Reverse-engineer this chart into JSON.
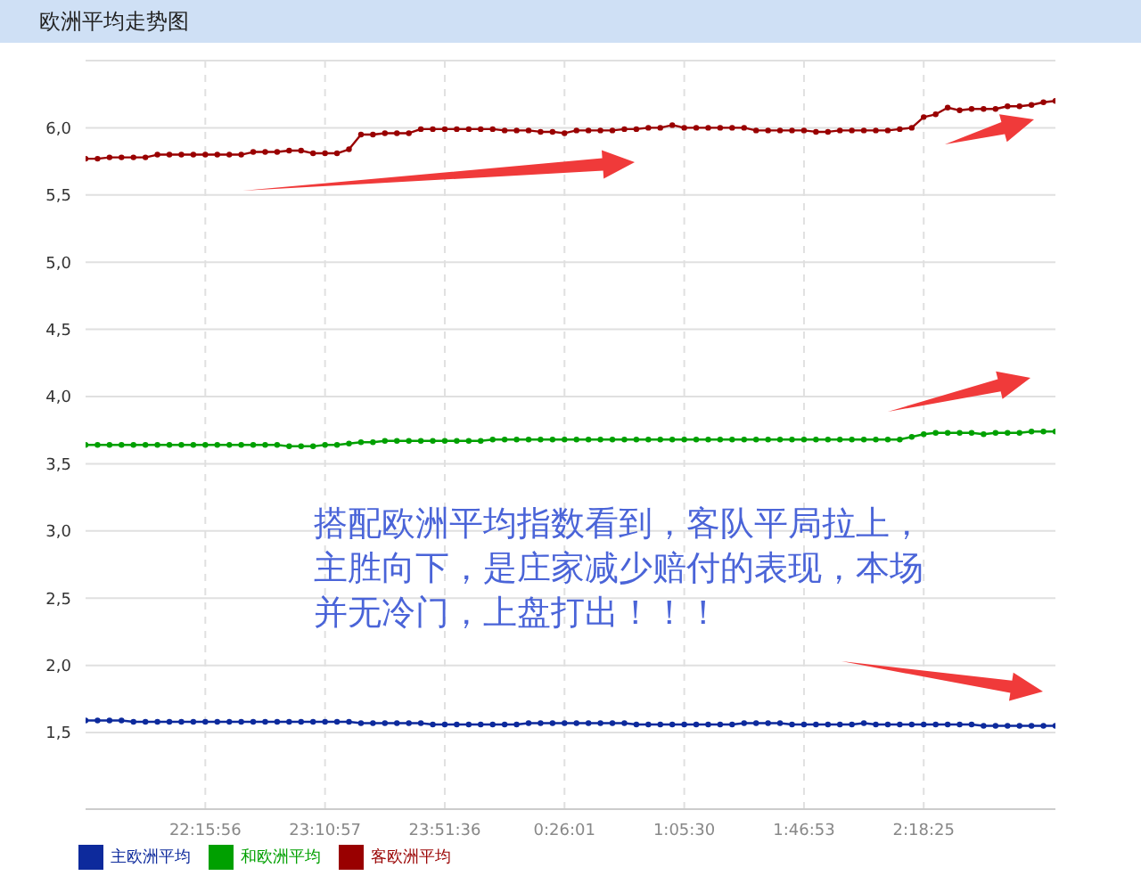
{
  "chart_data": {
    "type": "line",
    "title": "欧洲平均走势图",
    "categories": [
      null,
      null,
      null,
      null,
      null,
      null,
      null,
      null,
      null,
      null,
      "22:15:56",
      null,
      null,
      null,
      null,
      null,
      null,
      null,
      null,
      null,
      "23:10:57",
      null,
      null,
      null,
      null,
      null,
      null,
      null,
      null,
      null,
      "23:51:36",
      null,
      null,
      null,
      null,
      null,
      null,
      null,
      null,
      null,
      "0:26:01",
      null,
      null,
      null,
      null,
      null,
      null,
      null,
      null,
      null,
      "1:05:30",
      null,
      null,
      null,
      null,
      null,
      null,
      null,
      null,
      null,
      "1:46:53",
      null,
      null,
      null,
      null,
      null,
      null,
      null,
      null,
      null,
      "2:18:25",
      null,
      null,
      null,
      null,
      null,
      null,
      null,
      null,
      null,
      null,
      null
    ],
    "series": [
      {
        "name": "主欧洲平均",
        "color": "#0d2a9c",
        "values": [
          1.59,
          1.59,
          1.59,
          1.59,
          1.58,
          1.58,
          1.58,
          1.58,
          1.58,
          1.58,
          1.58,
          1.58,
          1.58,
          1.58,
          1.58,
          1.58,
          1.58,
          1.58,
          1.58,
          1.58,
          1.58,
          1.58,
          1.58,
          1.57,
          1.57,
          1.57,
          1.57,
          1.57,
          1.57,
          1.56,
          1.56,
          1.56,
          1.56,
          1.56,
          1.56,
          1.56,
          1.56,
          1.57,
          1.57,
          1.57,
          1.57,
          1.57,
          1.57,
          1.57,
          1.57,
          1.57,
          1.56,
          1.56,
          1.56,
          1.56,
          1.56,
          1.56,
          1.56,
          1.56,
          1.56,
          1.57,
          1.57,
          1.57,
          1.57,
          1.56,
          1.56,
          1.56,
          1.56,
          1.56,
          1.56,
          1.57,
          1.56,
          1.56,
          1.56,
          1.56,
          1.56,
          1.56,
          1.56,
          1.56,
          1.56,
          1.55,
          1.55,
          1.55,
          1.55,
          1.55,
          1.55,
          1.55
        ]
      },
      {
        "name": "和欧洲平均",
        "color": "#00a000",
        "values": [
          3.64,
          3.64,
          3.64,
          3.64,
          3.64,
          3.64,
          3.64,
          3.64,
          3.64,
          3.64,
          3.64,
          3.64,
          3.64,
          3.64,
          3.64,
          3.64,
          3.64,
          3.63,
          3.63,
          3.63,
          3.64,
          3.64,
          3.65,
          3.66,
          3.66,
          3.67,
          3.67,
          3.67,
          3.67,
          3.67,
          3.67,
          3.67,
          3.67,
          3.67,
          3.68,
          3.68,
          3.68,
          3.68,
          3.68,
          3.68,
          3.68,
          3.68,
          3.68,
          3.68,
          3.68,
          3.68,
          3.68,
          3.68,
          3.68,
          3.68,
          3.68,
          3.68,
          3.68,
          3.68,
          3.68,
          3.68,
          3.68,
          3.68,
          3.68,
          3.68,
          3.68,
          3.68,
          3.68,
          3.68,
          3.68,
          3.68,
          3.68,
          3.68,
          3.68,
          3.7,
          3.72,
          3.73,
          3.73,
          3.73,
          3.73,
          3.72,
          3.73,
          3.73,
          3.73,
          3.74,
          3.74,
          3.74
        ]
      },
      {
        "name": "客欧洲平均",
        "color": "#990000",
        "values": [
          5.77,
          5.77,
          5.78,
          5.78,
          5.78,
          5.78,
          5.8,
          5.8,
          5.8,
          5.8,
          5.8,
          5.8,
          5.8,
          5.8,
          5.82,
          5.82,
          5.82,
          5.83,
          5.83,
          5.81,
          5.81,
          5.81,
          5.84,
          5.95,
          5.95,
          5.96,
          5.96,
          5.96,
          5.99,
          5.99,
          5.99,
          5.99,
          5.99,
          5.99,
          5.99,
          5.98,
          5.98,
          5.98,
          5.97,
          5.97,
          5.96,
          5.98,
          5.98,
          5.98,
          5.98,
          5.99,
          5.99,
          6.0,
          6.0,
          6.02,
          6.0,
          6.0,
          6.0,
          6.0,
          6.0,
          6.0,
          5.98,
          5.98,
          5.98,
          5.98,
          5.98,
          5.97,
          5.97,
          5.98,
          5.98,
          5.98,
          5.98,
          5.98,
          5.99,
          6.0,
          6.08,
          6.1,
          6.15,
          6.13,
          6.14,
          6.14,
          6.14,
          6.16,
          6.16,
          6.17,
          6.19,
          6.2
        ]
      }
    ],
    "ylim": [
      0.93,
      6.5
    ],
    "yticks": [
      {
        "value": 1.5,
        "label": "1,5"
      },
      {
        "value": 2,
        "label": "2,0"
      },
      {
        "value": 2.5,
        "label": "2,5"
      },
      {
        "value": 3,
        "label": "3,0"
      },
      {
        "value": 3.5,
        "label": "3,5"
      },
      {
        "value": 4,
        "label": "4,0"
      },
      {
        "value": 4.5,
        "label": "4,5"
      },
      {
        "value": 5,
        "label": "5,0"
      },
      {
        "value": 5.5,
        "label": "5,5"
      },
      {
        "value": 6,
        "label": "6,0"
      }
    ],
    "grid": true,
    "legend": "bottom left",
    "marker": "circle",
    "line_style": "solid",
    "annotations": [
      "搭配欧洲平均指数看到，客队平局拉上，主胜向下，是庄家减少赔付的表现，本场并无冷门，上盘打出！！！"
    ]
  }
}
